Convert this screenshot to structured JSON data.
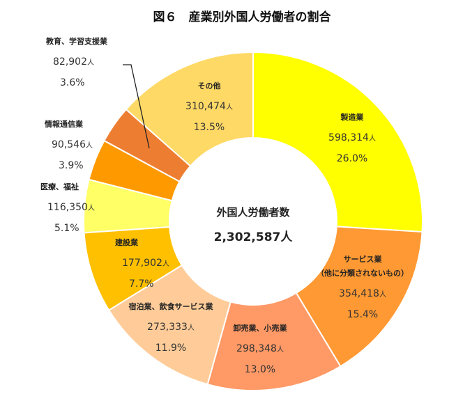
{
  "chart_data": {
    "type": "pie",
    "variant": "donut",
    "title": "図６　産業別外国人労働者の割合",
    "center": {
      "label": "外国人労働者数",
      "total": "2,302,587",
      "unit": "人"
    },
    "unit": "人",
    "slices": [
      {
        "name": "製造業",
        "name_lines": [
          "製造業"
        ],
        "value": 598314,
        "value_text": "598,314",
        "percent": 26.0,
        "percent_text": "26.0%",
        "color": "#FFFF00"
      },
      {
        "name": "サービス業（他に分類されないもの）",
        "name_lines": [
          "サービス業",
          "（他に分類されないもの）"
        ],
        "value": 354418,
        "value_text": "354,418",
        "percent": 15.4,
        "percent_text": "15.4%",
        "color": "#FF9933"
      },
      {
        "name": "卸売業、小売業",
        "name_lines": [
          "卸売業、小売業"
        ],
        "value": 298348,
        "value_text": "298,348",
        "percent": 13.0,
        "percent_text": "13.0%",
        "color": "#FF9966"
      },
      {
        "name": "宿泊業、飲食サービス業",
        "name_lines": [
          "宿泊業、飲食サービス業"
        ],
        "value": 273333,
        "value_text": "273,333",
        "percent": 11.9,
        "percent_text": "11.9%",
        "color": "#FFCC99"
      },
      {
        "name": "建設業",
        "name_lines": [
          "建設業"
        ],
        "value": 177902,
        "value_text": "177,902",
        "percent": 7.7,
        "percent_text": "7.7%",
        "color": "#FFC000"
      },
      {
        "name": "医療、福祉",
        "name_lines": [
          "医療、福祉"
        ],
        "value": 116350,
        "value_text": "116,350",
        "percent": 5.1,
        "percent_text": "5.1%",
        "color": "#FFFF66"
      },
      {
        "name": "情報通信業",
        "name_lines": [
          "情報通信業"
        ],
        "value": 90546,
        "value_text": "90,546",
        "percent": 3.9,
        "percent_text": "3.9%",
        "color": "#FF9900"
      },
      {
        "name": "教育、学習支援業",
        "name_lines": [
          "教育、学習支援業"
        ],
        "value": 82902,
        "value_text": "82,902",
        "percent": 3.6,
        "percent_text": "3.6%",
        "color": "#ED7D31"
      },
      {
        "name": "その他",
        "name_lines": [
          "その他"
        ],
        "value": 310474,
        "value_text": "310,474",
        "percent": 13.5,
        "percent_text": "13.5%",
        "color": "#FFD966"
      }
    ]
  }
}
